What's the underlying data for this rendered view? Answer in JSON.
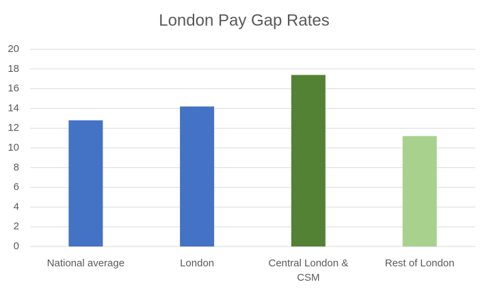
{
  "chart_data": {
    "type": "bar",
    "title": "London Pay Gap Rates",
    "categories": [
      "National average",
      "London",
      "Central London & CSM",
      "Rest of London"
    ],
    "values": [
      12.8,
      14.2,
      17.4,
      11.2
    ],
    "colors": [
      "#4472c4",
      "#4472c4",
      "#548235",
      "#a9d18e"
    ],
    "ylim": [
      0,
      20
    ],
    "yticks": [
      0,
      2,
      4,
      6,
      8,
      10,
      12,
      14,
      16,
      18,
      20
    ],
    "grid": true
  }
}
